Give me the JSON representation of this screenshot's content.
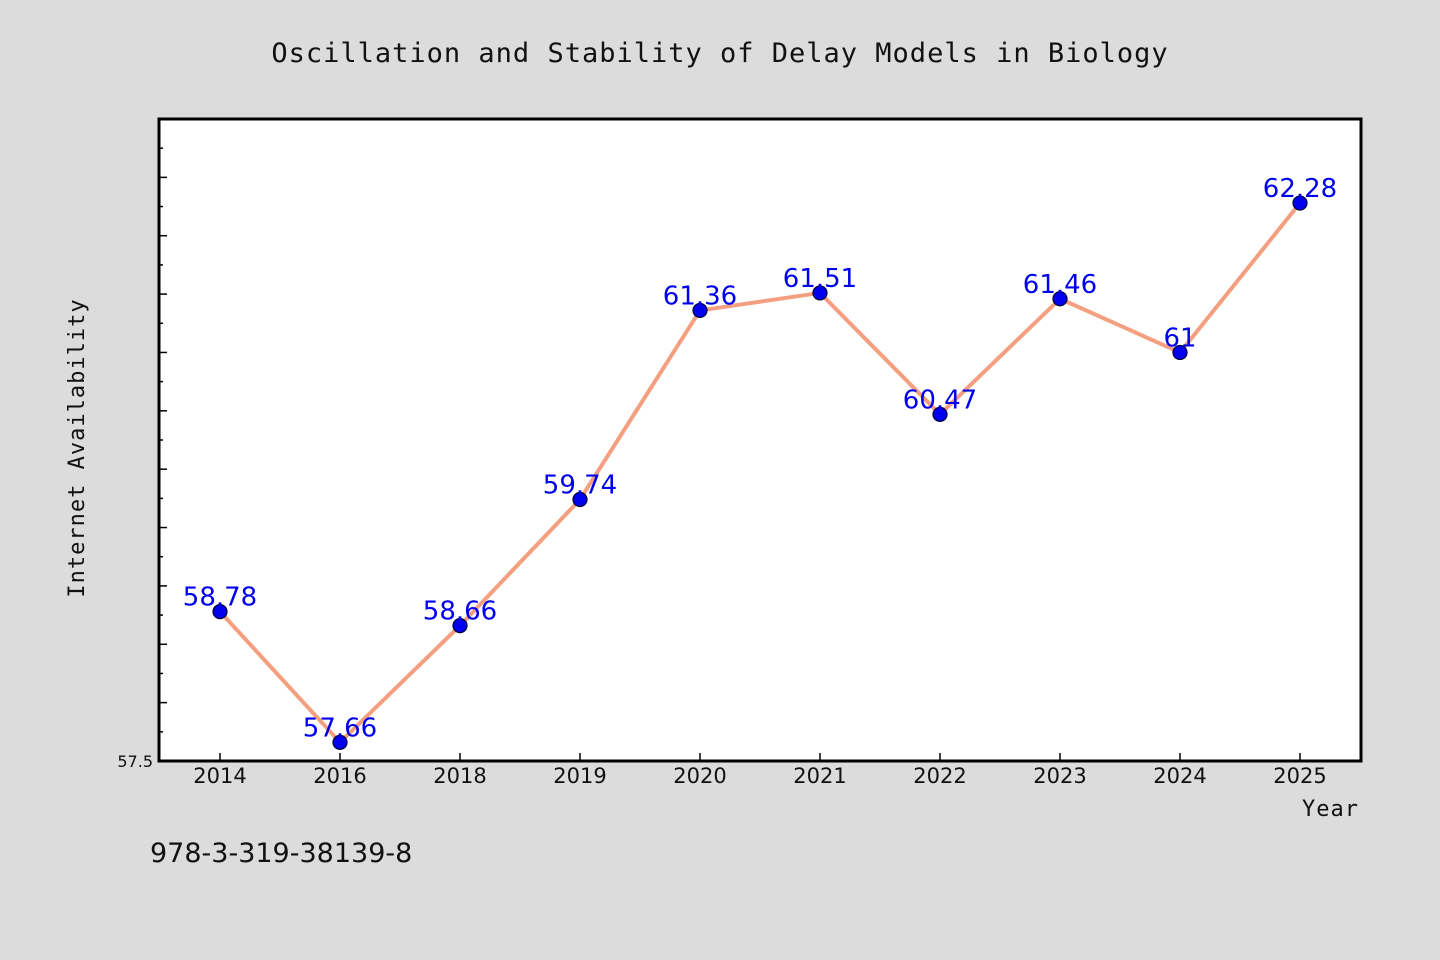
{
  "chart_data": {
    "type": "line",
    "title": "Oscillation and Stability of Delay Models in Biology",
    "xlabel": "Year",
    "ylabel": "Internet Availability",
    "categories": [
      "2014",
      "2016",
      "2018",
      "2019",
      "2020",
      "2021",
      "2022",
      "2023",
      "2024",
      "2025"
    ],
    "series": [
      {
        "values": [
          58.78,
          57.66,
          58.66,
          59.74,
          61.36,
          61.51,
          60.47,
          61.46,
          61,
          62.28
        ]
      }
    ],
    "data_labels": [
      "58.78",
      "57.66",
      "58.66",
      "59.74",
      "61.36",
      "61.51",
      "60.47",
      "61.46",
      "61",
      "62.28"
    ],
    "y_tick_labels": [
      "57.5"
    ],
    "ylim": [
      57.5,
      63.0
    ],
    "grid": false,
    "legend": "none",
    "line_color": "#f4a080",
    "marker_color": "#0000ee",
    "label_color": "#0000ee"
  },
  "annotation": "978-3-319-38139-8"
}
